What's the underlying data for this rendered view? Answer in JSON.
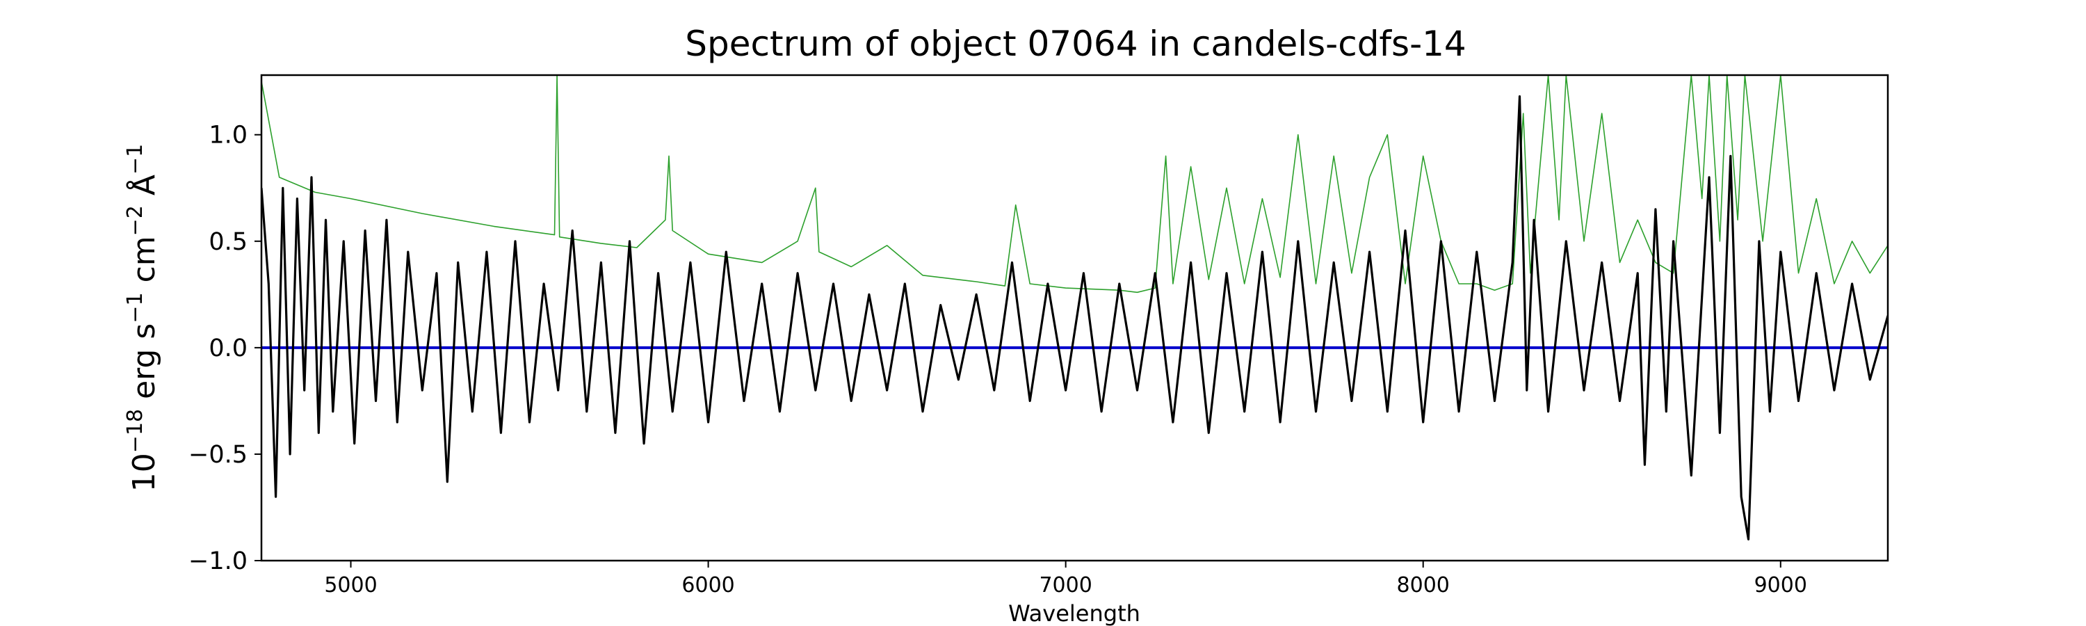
{
  "chart_data": {
    "type": "line",
    "title": "Spectrum of object 07064 in candels-cdfs-14",
    "xlabel": "Wavelength",
    "ylabel_parts": [
      "10",
      "−18",
      " erg s",
      "−1",
      " cm",
      "−2",
      " Å",
      "−1"
    ],
    "xlim": [
      4750,
      9300
    ],
    "ylim": [
      -1.0,
      1.28
    ],
    "xticks": [
      5000,
      6000,
      7000,
      8000,
      9000
    ],
    "xtick_labels": [
      "5000",
      "6000",
      "7000",
      "8000",
      "9000"
    ],
    "yticks": [
      -1.0,
      -0.5,
      0.0,
      0.5,
      1.0
    ],
    "ytick_labels": [
      "−1.0",
      "−0.5",
      "0.0",
      "0.5",
      "1.0"
    ],
    "grid": false,
    "series": [
      {
        "role": "zero-line",
        "color": "#0000cc",
        "x": [
          4750,
          9300
        ],
        "y": [
          0.0,
          0.0
        ]
      },
      {
        "role": "error-spectrum",
        "color": "#2ca02c",
        "x": [
          4750,
          4800,
          4900,
          5000,
          5200,
          5400,
          5570,
          5577,
          5584,
          5700,
          5800,
          5880,
          5890,
          5900,
          6000,
          6150,
          6250,
          6300,
          6310,
          6400,
          6500,
          6600,
          6750,
          6830,
          6860,
          6900,
          7000,
          7150,
          7200,
          7250,
          7280,
          7300,
          7350,
          7400,
          7450,
          7500,
          7550,
          7600,
          7650,
          7700,
          7750,
          7800,
          7850,
          7900,
          7950,
          8000,
          8050,
          8100,
          8150,
          8200,
          8250,
          8280,
          8300,
          8350,
          8380,
          8400,
          8450,
          8500,
          8550,
          8600,
          8650,
          8700,
          8750,
          8780,
          8800,
          8830,
          8850,
          8880,
          8900,
          8950,
          9000,
          9050,
          9100,
          9150,
          9200,
          9250,
          9300
        ],
        "y": [
          1.25,
          0.8,
          0.73,
          0.7,
          0.63,
          0.57,
          0.53,
          1.28,
          0.52,
          0.49,
          0.47,
          0.6,
          0.9,
          0.55,
          0.44,
          0.4,
          0.5,
          0.75,
          0.45,
          0.38,
          0.48,
          0.34,
          0.31,
          0.29,
          0.67,
          0.3,
          0.28,
          0.27,
          0.26,
          0.28,
          0.9,
          0.3,
          0.85,
          0.32,
          0.75,
          0.3,
          0.7,
          0.33,
          1.0,
          0.3,
          0.9,
          0.35,
          0.8,
          1.0,
          0.3,
          0.9,
          0.5,
          0.3,
          0.3,
          0.27,
          0.3,
          1.1,
          0.35,
          1.28,
          0.6,
          1.28,
          0.5,
          1.1,
          0.4,
          0.6,
          0.4,
          0.35,
          1.28,
          0.7,
          1.28,
          0.5,
          1.28,
          0.6,
          1.28,
          0.5,
          1.28,
          0.35,
          0.7,
          0.3,
          0.5,
          0.35,
          0.48
        ]
      },
      {
        "role": "flux-spectrum",
        "color": "#000000",
        "x": [
          4750,
          4770,
          4790,
          4810,
          4830,
          4850,
          4870,
          4890,
          4910,
          4930,
          4950,
          4980,
          5010,
          5040,
          5070,
          5100,
          5130,
          5160,
          5200,
          5240,
          5270,
          5300,
          5340,
          5380,
          5420,
          5460,
          5500,
          5540,
          5580,
          5620,
          5660,
          5700,
          5740,
          5780,
          5820,
          5860,
          5900,
          5950,
          6000,
          6050,
          6100,
          6150,
          6200,
          6250,
          6300,
          6350,
          6400,
          6450,
          6500,
          6550,
          6600,
          6650,
          6700,
          6750,
          6800,
          6850,
          6900,
          6950,
          7000,
          7050,
          7100,
          7150,
          7200,
          7250,
          7300,
          7350,
          7400,
          7450,
          7500,
          7550,
          7600,
          7650,
          7700,
          7750,
          7800,
          7850,
          7900,
          7950,
          8000,
          8050,
          8100,
          8150,
          8200,
          8250,
          8270,
          8290,
          8310,
          8350,
          8400,
          8450,
          8500,
          8550,
          8600,
          8620,
          8650,
          8680,
          8700,
          8750,
          8800,
          8830,
          8860,
          8890,
          8910,
          8940,
          8970,
          9000,
          9050,
          9100,
          9150,
          9200,
          9250,
          9300
        ],
        "y": [
          0.75,
          0.3,
          -0.7,
          0.75,
          -0.5,
          0.7,
          -0.2,
          0.8,
          -0.4,
          0.6,
          -0.3,
          0.5,
          -0.45,
          0.55,
          -0.25,
          0.6,
          -0.35,
          0.45,
          -0.2,
          0.35,
          -0.63,
          0.4,
          -0.3,
          0.45,
          -0.4,
          0.5,
          -0.35,
          0.3,
          -0.2,
          0.55,
          -0.3,
          0.4,
          -0.4,
          0.5,
          -0.45,
          0.35,
          -0.3,
          0.4,
          -0.35,
          0.45,
          -0.25,
          0.3,
          -0.3,
          0.35,
          -0.2,
          0.3,
          -0.25,
          0.25,
          -0.2,
          0.3,
          -0.3,
          0.2,
          -0.15,
          0.25,
          -0.2,
          0.4,
          -0.25,
          0.3,
          -0.2,
          0.35,
          -0.3,
          0.3,
          -0.2,
          0.35,
          -0.35,
          0.4,
          -0.4,
          0.35,
          -0.3,
          0.45,
          -0.35,
          0.5,
          -0.3,
          0.4,
          -0.25,
          0.45,
          -0.3,
          0.55,
          -0.35,
          0.5,
          -0.3,
          0.45,
          -0.25,
          0.4,
          1.18,
          -0.2,
          0.6,
          -0.3,
          0.5,
          -0.2,
          0.4,
          -0.25,
          0.35,
          -0.55,
          0.65,
          -0.3,
          0.5,
          -0.6,
          0.8,
          -0.4,
          0.9,
          -0.7,
          -0.9,
          0.5,
          -0.3,
          0.45,
          -0.25,
          0.35,
          -0.2,
          0.3,
          -0.15,
          0.15
        ]
      }
    ]
  }
}
